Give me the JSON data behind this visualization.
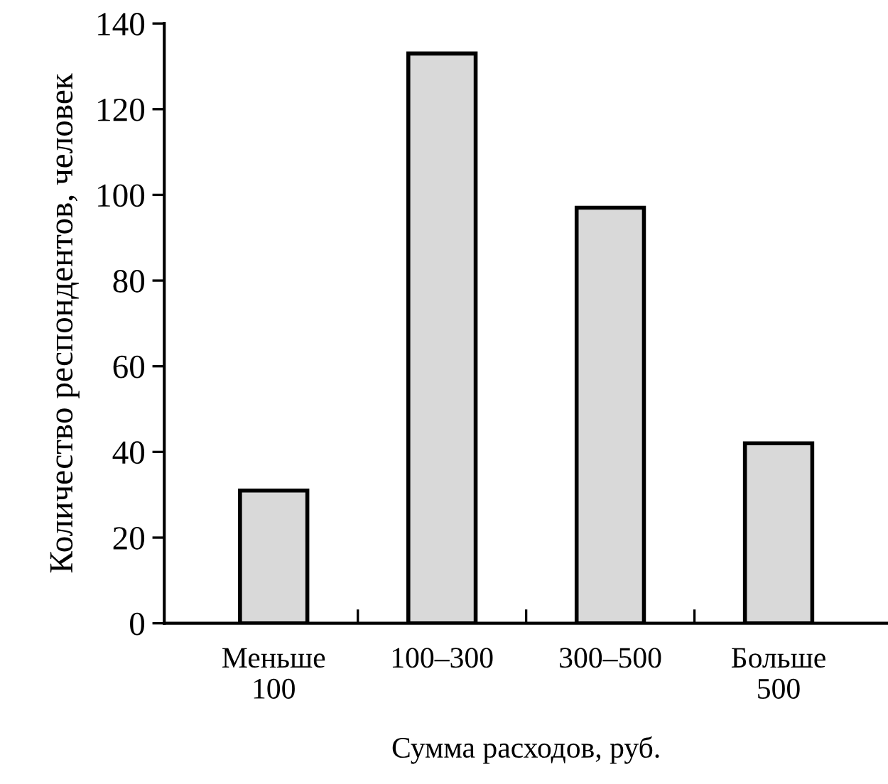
{
  "chart_data": {
    "type": "bar",
    "xlabel": "Сумма расходов, руб.",
    "ylabel": "Количество респондентов, человек",
    "categories": [
      "Меньше\n100",
      "100–300",
      "300–500",
      "Больше\n500"
    ],
    "values": [
      31,
      133,
      97,
      42
    ],
    "color": "#d9d9d9",
    "ylim": [
      0,
      140
    ],
    "yticks": [
      0,
      20,
      40,
      60,
      80,
      100,
      120,
      140
    ],
    "grid": false,
    "legend": false
  }
}
